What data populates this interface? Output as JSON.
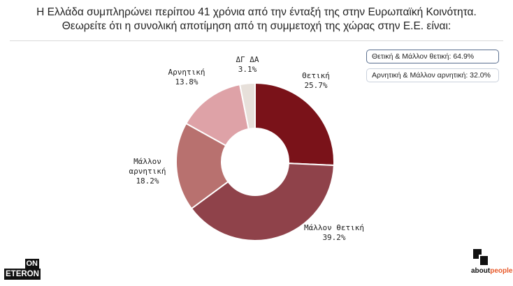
{
  "title": {
    "line1": "Η Ελλάδα συμπληρώνει περίπου 41 χρόνια από την ένταξή της στην Ευρωπαϊκή Κοινότητα.",
    "line2": "Θεωρείτε ότι η συνολική αποτίμηση από τη συμμετοχή της χώρας στην Ε.Ε. είναι:"
  },
  "summary": {
    "positive": "Θετική & Μάλλον θετική: 64.9%",
    "negative": "Αρνητική & Μάλλον αρνητική: 32.0%"
  },
  "logos": {
    "onet_on": "ON",
    "onet_eteron": "ETERON",
    "about_main": "about",
    "about_accent": "people"
  },
  "chart_data": {
    "type": "pie",
    "donut": true,
    "title": "Θεωρείτε ότι η συνολική αποτίμηση από τη συμμετοχή της χώρας στην Ε.Ε. είναι:",
    "slices": [
      {
        "label": [
          "Θετική"
        ],
        "pct_text": "25.7%",
        "value": 25.7,
        "color": "#7a1219",
        "slot": "right-top"
      },
      {
        "label": [
          "Μάλλον θετική"
        ],
        "pct_text": "39.2%",
        "value": 39.2,
        "color": "#8f424a",
        "slot": "bottom-right"
      },
      {
        "label": [
          "Μάλλον",
          "αρνητική"
        ],
        "pct_text": "18.2%",
        "value": 18.2,
        "color": "#b8716f",
        "slot": "left"
      },
      {
        "label": [
          "Αρνητική"
        ],
        "pct_text": "13.8%",
        "value": 13.8,
        "color": "#dea2a7",
        "slot": "top-left"
      },
      {
        "label": [
          "ΔΓ ΔΑ"
        ],
        "pct_text": "3.1%",
        "value": 3.1,
        "color": "#e7e0da",
        "slot": "top"
      }
    ]
  }
}
